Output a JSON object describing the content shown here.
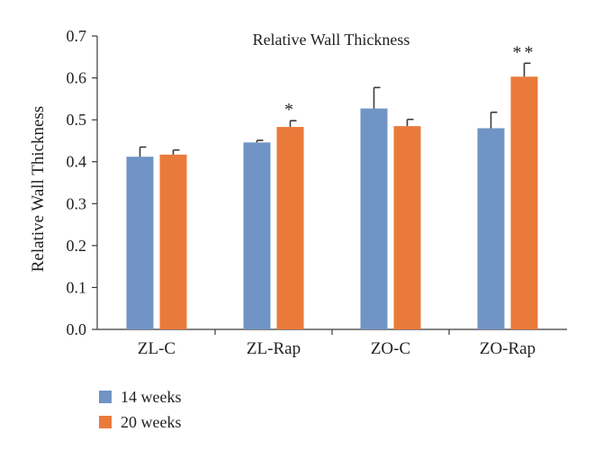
{
  "chart_data": {
    "type": "bar",
    "title": "Relative Wall Thickness",
    "xlabel": "",
    "ylabel": "Relative Wall Thickness",
    "ylim": [
      0,
      0.7
    ],
    "yticks": [
      "0.0",
      "0.1",
      "0.2",
      "0.3",
      "0.4",
      "0.5",
      "0.6",
      "0.7"
    ],
    "categories": [
      "ZL-C",
      "ZL-Rap",
      "ZO-C",
      "ZO-Rap"
    ],
    "series": [
      {
        "name": "14 weeks",
        "color": "#7094c5",
        "values": [
          0.412,
          0.446,
          0.527,
          0.48
        ],
        "errors": [
          0.023,
          0.005,
          0.05,
          0.038
        ]
      },
      {
        "name": "20 weeks",
        "color": "#ea7a3a",
        "values": [
          0.417,
          0.483,
          0.485,
          0.603
        ],
        "errors": [
          0.011,
          0.015,
          0.016,
          0.032
        ]
      }
    ],
    "significance": [
      {
        "category": "ZL-Rap",
        "series": "20 weeks",
        "label": "*"
      },
      {
        "category": "ZO-Rap",
        "series": "20 weeks",
        "label": "**"
      }
    ],
    "grid": false,
    "legend_position": "bottom-left"
  }
}
